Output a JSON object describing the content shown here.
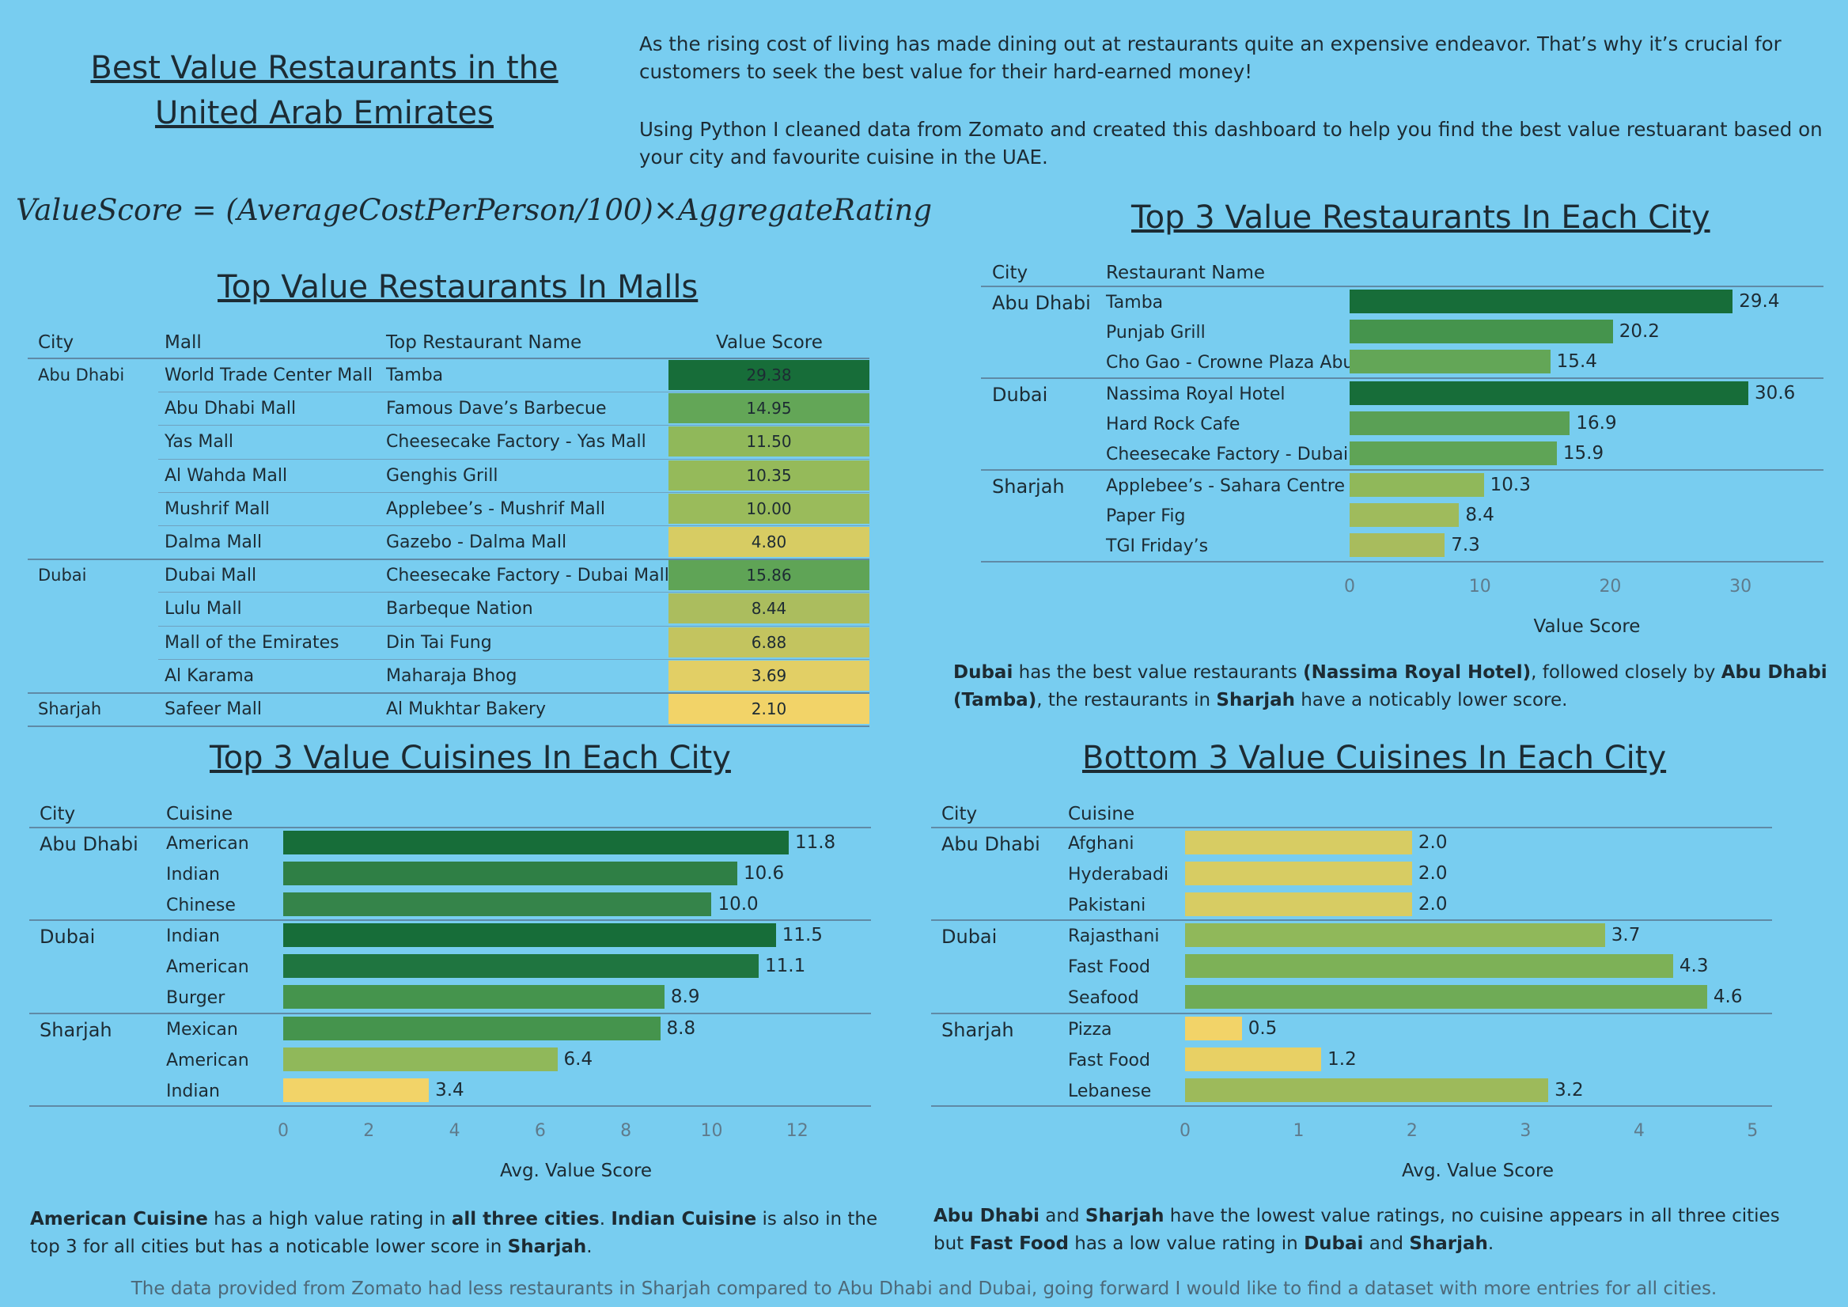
{
  "header": {
    "title_line1": "Best Value Restaurants in the",
    "title_line2": "United Arab Emirates",
    "intro_p1": "As the rising cost of living has made dining out at restaurants quite an expensive endeavor. That’s why it’s crucial for customers to seek the best value for their hard-earned money!",
    "intro_p2": "Using Python I cleaned data from Zomato and created this dashboard to help you find the best value restuarant based on your city and favourite cuisine in the UAE.",
    "formula": "ValueScore = (AverageCostPerPerson/100)×AggregateRating"
  },
  "colors": {
    "background": "#78cdf0",
    "dark_green": "#176d39",
    "mid_green": "#2f7f45",
    "green": "#45944d",
    "light_green": "#63a657",
    "yellow_green": "#90b85a",
    "olive": "#aabc5e",
    "yellow": "#d7cc63",
    "pale_yellow": "#f2d368"
  },
  "malls": {
    "title": "Top Value Restaurants In Malls",
    "headers": [
      "City",
      "Mall",
      "Top Restaurant Name",
      "Value Score"
    ],
    "rows": [
      {
        "city": "Abu Dhabi",
        "mall": "World Trade Center Mall",
        "restaurant": "Tamba",
        "score": "29.38",
        "color": "#176d39"
      },
      {
        "city": "",
        "mall": "Abu Dhabi Mall",
        "restaurant": "Famous Dave’s Barbecue",
        "score": "14.95",
        "color": "#63a657"
      },
      {
        "city": "",
        "mall": "Yas Mall",
        "restaurant": "Cheesecake Factory - Yas Mall",
        "score": "11.50",
        "color": "#90b85a"
      },
      {
        "city": "",
        "mall": "Al Wahda Mall",
        "restaurant": "Genghis Grill",
        "score": "10.35",
        "color": "#95ba5a"
      },
      {
        "city": "",
        "mall": "Mushrif Mall",
        "restaurant": "Applebee’s - Mushrif Mall",
        "score": "10.00",
        "color": "#9abb5b"
      },
      {
        "city": "",
        "mall": "Dalma Mall",
        "restaurant": "Gazebo - Dalma Mall",
        "score": "4.80",
        "color": "#d7cc63"
      },
      {
        "city": "Dubai",
        "mall": "Dubai Mall",
        "restaurant": "Cheesecake Factory - Dubai Mall",
        "score": "15.86",
        "color": "#5fa456"
      },
      {
        "city": "",
        "mall": "Lulu Mall",
        "restaurant": "Barbeque Nation",
        "score": "8.44",
        "color": "#abbd5e"
      },
      {
        "city": "",
        "mall": "Mall of the Emirates",
        "restaurant": "Din Tai Fung",
        "score": "6.88",
        "color": "#c3c45f"
      },
      {
        "city": "",
        "mall": "Al Karama",
        "restaurant": "Maharaja Bhog",
        "score": "3.69",
        "color": "#e2cf65"
      },
      {
        "city": "Sharjah",
        "mall": "Safeer Mall",
        "restaurant": "Al Mukhtar Bakery",
        "score": "2.10",
        "color": "#f2d368"
      }
    ]
  },
  "top_restaurants": {
    "title": "Top 3 Value Restaurants In Each City",
    "headers": [
      "City",
      "Restaurant Name"
    ],
    "axis_title": "Value Score",
    "ticks": [
      "0",
      "10",
      "20",
      "30"
    ],
    "note_parts": [
      "Dubai",
      " has the best value restaurants ",
      "(Nassima Royal Hotel)",
      ", followed closely by ",
      "Abu Dhabi (Tamba)",
      ", the restaurants in ",
      "Sharjah",
      " have a noticably lower score."
    ]
  },
  "top_cuisines": {
    "title": "Top 3 Value Cuisines In Each City",
    "headers": [
      "City",
      "Cuisine"
    ],
    "axis_title": "Avg. Value Score",
    "ticks": [
      "0",
      "2",
      "4",
      "6",
      "8",
      "10",
      "12"
    ],
    "note_parts": [
      "American Cuisine",
      " has a high value rating in ",
      "all three cities",
      ". ",
      "Indian Cuisine",
      " is also in the top 3 for all cities but has a noticable lower score in ",
      "Sharjah",
      "."
    ]
  },
  "bottom_cuisines": {
    "title": "Bottom 3 Value Cuisines In Each City",
    "headers": [
      "City",
      "Cuisine"
    ],
    "axis_title": "Avg. Value Score",
    "ticks": [
      "0",
      "1",
      "2",
      "3",
      "4",
      "5"
    ],
    "note_parts": [
      "Abu Dhabi",
      " and ",
      "Sharjah",
      " have the lowest value ratings, no cuisine appears in all three cities but ",
      "Fast Food",
      " has a low value rating in ",
      "Dubai",
      " and ",
      "Sharjah",
      "."
    ]
  },
  "footer": "The data provided from Zomato had less restaurants in Sharjah compared to Abu Dhabi and Dubai, going forward I would like to find a dataset with more entries for all cities.",
  "chart_data": [
    {
      "type": "table",
      "title": "Top Value Restaurants In Malls",
      "columns": [
        "City",
        "Mall",
        "Top Restaurant Name",
        "Value Score"
      ],
      "rows": [
        [
          "Abu Dhabi",
          "World Trade Center Mall",
          "Tamba",
          29.38
        ],
        [
          "Abu Dhabi",
          "Abu Dhabi Mall",
          "Famous Dave’s Barbecue",
          14.95
        ],
        [
          "Abu Dhabi",
          "Yas Mall",
          "Cheesecake Factory - Yas Mall",
          11.5
        ],
        [
          "Abu Dhabi",
          "Al Wahda Mall",
          "Genghis Grill",
          10.35
        ],
        [
          "Abu Dhabi",
          "Mushrif Mall",
          "Applebee’s - Mushrif Mall",
          10.0
        ],
        [
          "Abu Dhabi",
          "Dalma Mall",
          "Gazebo - Dalma Mall",
          4.8
        ],
        [
          "Dubai",
          "Dubai Mall",
          "Cheesecake Factory - Dubai Mall",
          15.86
        ],
        [
          "Dubai",
          "Lulu Mall",
          "Barbeque Nation",
          8.44
        ],
        [
          "Dubai",
          "Mall of the Emirates",
          "Din Tai Fung",
          6.88
        ],
        [
          "Dubai",
          "Al Karama",
          "Maharaja Bhog",
          3.69
        ],
        [
          "Sharjah",
          "Safeer Mall",
          "Al Mukhtar Bakery",
          2.1
        ]
      ]
    },
    {
      "type": "bar",
      "title": "Top 3 Value Restaurants In Each City",
      "xlabel": "Value Score",
      "xlim": [
        0,
        36
      ],
      "groups": [
        {
          "city": "Abu Dhabi",
          "items": [
            {
              "label": "Tamba",
              "value": 29.4,
              "color": "#176d39"
            },
            {
              "label": "Punjab Grill",
              "value": 20.2,
              "color": "#45944d"
            },
            {
              "label": "Cho Gao - Crowne Plaza Abu ..",
              "value": 15.4,
              "color": "#63a657"
            }
          ]
        },
        {
          "city": "Dubai",
          "items": [
            {
              "label": "Nassima Royal Hotel",
              "value": 30.6,
              "color": "#176d39"
            },
            {
              "label": "Hard Rock Cafe",
              "value": 16.9,
              "color": "#5aa055"
            },
            {
              "label": "Cheesecake Factory - Dubai ..",
              "value": 15.9,
              "color": "#5fa456"
            }
          ]
        },
        {
          "city": "Sharjah",
          "items": [
            {
              "label": "Applebee’s - Sahara Centre",
              "value": 10.3,
              "color": "#90b85a"
            },
            {
              "label": "Paper Fig",
              "value": 8.4,
              "color": "#9fbb5c"
            },
            {
              "label": "TGI Friday’s",
              "value": 7.3,
              "color": "#a8bc5d"
            }
          ]
        }
      ]
    },
    {
      "type": "bar",
      "title": "Top 3 Value Cuisines In Each City",
      "xlabel": "Avg. Value Score",
      "xlim": [
        0,
        13.5
      ],
      "groups": [
        {
          "city": "Abu Dhabi",
          "items": [
            {
              "label": "American",
              "value": 11.8,
              "color": "#176d39"
            },
            {
              "label": "Indian",
              "value": 10.6,
              "color": "#2f7f45"
            },
            {
              "label": "Chinese",
              "value": 10.0,
              "color": "#35844a"
            }
          ]
        },
        {
          "city": "Dubai",
          "items": [
            {
              "label": "Indian",
              "value": 11.5,
              "color": "#176d39"
            },
            {
              "label": "American",
              "value": 11.1,
              "color": "#1f7540"
            },
            {
              "label": "Burger",
              "value": 8.9,
              "color": "#45944d"
            }
          ]
        },
        {
          "city": "Sharjah",
          "items": [
            {
              "label": "Mexican",
              "value": 8.8,
              "color": "#45944d"
            },
            {
              "label": "American",
              "value": 6.4,
              "color": "#90b85a"
            },
            {
              "label": "Indian",
              "value": 3.4,
              "color": "#f2d368"
            }
          ]
        }
      ]
    },
    {
      "type": "bar",
      "title": "Bottom 3 Value Cuisines In Each City",
      "xlabel": "Avg. Value Score",
      "xlim": [
        0,
        5.2
      ],
      "groups": [
        {
          "city": "Abu Dhabi",
          "items": [
            {
              "label": "Afghani",
              "value": 2.0,
              "color": "#d7cc63"
            },
            {
              "label": "Hyderabadi",
              "value": 2.0,
              "color": "#d7cc63"
            },
            {
              "label": "Pakistani",
              "value": 2.0,
              "color": "#d7cc63"
            }
          ]
        },
        {
          "city": "Dubai",
          "items": [
            {
              "label": "Rajasthani",
              "value": 3.7,
              "color": "#90b85a"
            },
            {
              "label": "Fast Food",
              "value": 4.3,
              "color": "#7db157"
            },
            {
              "label": "Seafood",
              "value": 4.6,
              "color": "#6fab56"
            }
          ]
        },
        {
          "city": "Sharjah",
          "items": [
            {
              "label": "Pizza",
              "value": 0.5,
              "color": "#f2d368"
            },
            {
              "label": "Fast Food",
              "value": 1.2,
              "color": "#e8d064"
            },
            {
              "label": "Lebanese",
              "value": 3.2,
              "color": "#9dba5b"
            }
          ]
        }
      ]
    }
  ]
}
